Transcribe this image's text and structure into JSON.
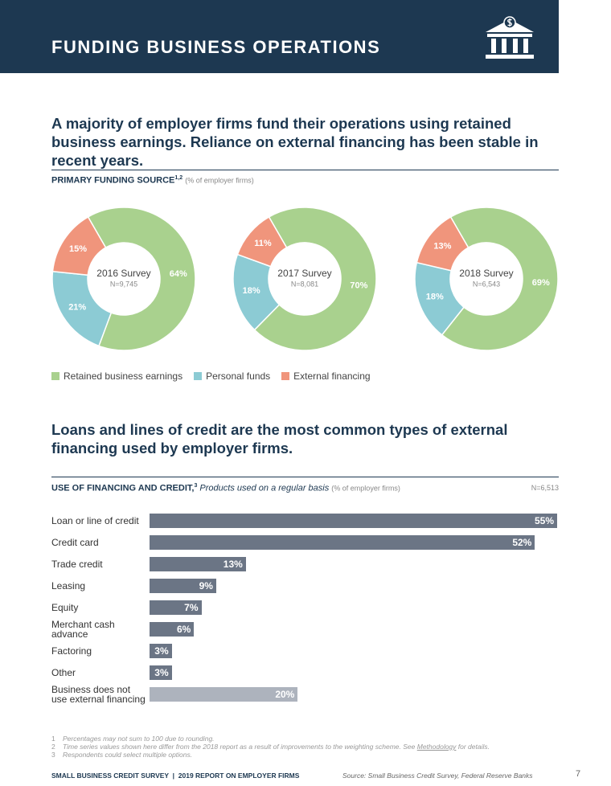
{
  "header": {
    "title": "FUNDING BUSINESS OPERATIONS"
  },
  "section1": {
    "headline": "A majority of employer firms fund their operations using retained business earnings. Reliance on external financing has been stable in recent years.",
    "chart_title": "PRIMARY FUNDING SOURCE",
    "chart_title_sup": "1,2",
    "chart_note": "(% of employer firms)"
  },
  "section2": {
    "headline": "Loans and lines of credit are the most common types of external financing used by employer firms.",
    "chart_title": "USE OF FINANCING AND CREDIT,",
    "chart_title_sup": "3",
    "chart_subtitle": "Products used on a regular basis",
    "chart_note": "(% of employer firms)",
    "sample": "N=6,513"
  },
  "chart_data": [
    {
      "type": "pie",
      "donut": true,
      "title": "2016 Survey",
      "subtitle": "N=9,745",
      "categories": [
        "Retained business earnings",
        "Personal funds",
        "External financing"
      ],
      "colors": [
        "#a9d18e",
        "#8ccbd4",
        "#f0957c"
      ],
      "values": [
        64,
        21,
        15
      ],
      "value_labels": [
        "64%",
        "21%",
        "15%"
      ]
    },
    {
      "type": "pie",
      "donut": true,
      "title": "2017 Survey",
      "subtitle": "N=8,081",
      "categories": [
        "Retained business earnings",
        "Personal funds",
        "External financing"
      ],
      "colors": [
        "#a9d18e",
        "#8ccbd4",
        "#f0957c"
      ],
      "values": [
        70,
        18,
        11
      ],
      "value_labels": [
        "70%",
        "18%",
        "11%"
      ]
    },
    {
      "type": "pie",
      "donut": true,
      "title": "2018 Survey",
      "subtitle": "N=6,543",
      "categories": [
        "Retained business earnings",
        "Personal funds",
        "External financing"
      ],
      "colors": [
        "#a9d18e",
        "#8ccbd4",
        "#f0957c"
      ],
      "values": [
        69,
        18,
        13
      ],
      "value_labels": [
        "69%",
        "18%",
        "13%"
      ]
    },
    {
      "type": "hbar",
      "categories": [
        "Loan or line of credit",
        "Credit card",
        "Trade credit",
        "Leasing",
        "Equity",
        "Merchant cash advance",
        "Factoring",
        "Other",
        "Business does not use external financing"
      ],
      "values": [
        55,
        52,
        13,
        9,
        7,
        6,
        3,
        3,
        20
      ],
      "value_labels": [
        "55%",
        "52%",
        "13%",
        "9%",
        "7%",
        "6%",
        "3%",
        "3%",
        "20%"
      ],
      "colors": [
        "#6b7585",
        "#6b7585",
        "#6b7585",
        "#6b7585",
        "#6b7585",
        "#6b7585",
        "#6b7585",
        "#6b7585",
        "#adb3bd"
      ],
      "xlim": [
        0,
        55
      ]
    }
  ],
  "footnotes": [
    {
      "num": "1",
      "text": "Percentages may not sum to 100 due to rounding."
    },
    {
      "num": "2",
      "text": "Time series values shown here differ from the 2018 report as a result of improvements to the weighting scheme. See ",
      "link": "Methodology",
      "text_after": " for details."
    },
    {
      "num": "3",
      "text": "Respondents could select multiple options."
    }
  ],
  "footer": {
    "left": "SMALL BUSINESS CREDIT SURVEY  |  2019 REPORT ON EMPLOYER FIRMS",
    "source": "Source: Small Business Credit Survey, Federal Reserve Banks",
    "page": "7"
  }
}
